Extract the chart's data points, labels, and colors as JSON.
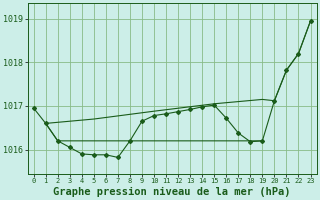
{
  "background_color": "#cceee8",
  "grid_color": "#88bb88",
  "line_color": "#1a5c1a",
  "xlabel": "Graphe pression niveau de la mer (hPa)",
  "xlim": [
    -0.5,
    23.5
  ],
  "ylim": [
    1015.45,
    1019.35
  ],
  "yticks": [
    1016,
    1017,
    1018,
    1019
  ],
  "xticks": [
    0,
    1,
    2,
    3,
    4,
    5,
    6,
    7,
    8,
    9,
    10,
    11,
    12,
    13,
    14,
    15,
    16,
    17,
    18,
    19,
    20,
    21,
    22,
    23
  ],
  "series1_x": [
    0,
    1,
    2,
    3,
    4,
    5,
    6,
    7,
    8,
    9,
    10,
    11,
    12,
    13,
    14,
    15,
    16,
    17,
    18,
    19,
    20,
    21,
    22,
    23
  ],
  "series1_y": [
    1016.95,
    1016.6,
    1016.2,
    1016.05,
    1015.9,
    1015.88,
    1015.88,
    1015.82,
    1016.2,
    1016.65,
    1016.78,
    1016.82,
    1016.87,
    1016.92,
    1016.98,
    1017.02,
    1016.72,
    1016.38,
    1016.18,
    1016.2,
    1017.12,
    1017.82,
    1018.2,
    1018.95
  ],
  "series2_x": [
    1,
    2,
    3,
    4,
    5,
    6,
    7,
    8,
    9,
    10,
    11,
    12,
    13,
    14,
    15,
    16,
    17,
    18,
    19
  ],
  "series2_y": [
    1016.6,
    1016.2,
    1016.2,
    1016.2,
    1016.2,
    1016.2,
    1016.2,
    1016.2,
    1016.2,
    1016.2,
    1016.2,
    1016.2,
    1016.2,
    1016.2,
    1016.2,
    1016.2,
    1016.2,
    1016.2,
    1016.2
  ],
  "series3_x": [
    1,
    5,
    10,
    15,
    19,
    20,
    21,
    22,
    23
  ],
  "series3_y": [
    1016.6,
    1016.7,
    1016.88,
    1017.05,
    1017.15,
    1017.12,
    1017.82,
    1018.2,
    1018.95
  ]
}
